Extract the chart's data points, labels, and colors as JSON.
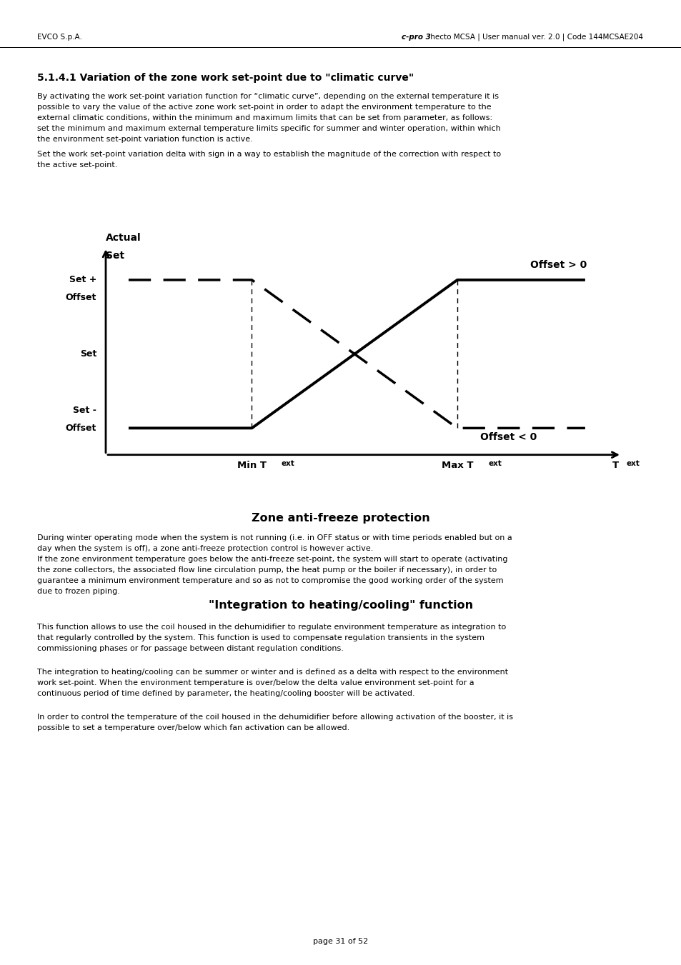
{
  "page_bg": "#ffffff",
  "header_left": "EVCO S.p.A.",
  "header_right_bold": "c-pro 3",
  "header_right_rest": " hecto MCSA | User manual ver. 2.0 | Code 144MCSAE204",
  "section_title": "5.1.4.1 Variation of the zone work set-point due to \"climatic curve\"",
  "para1_lines": [
    "By activating the work set-point variation function for “climatic curve”, depending on the external temperature it is",
    "possible to vary the value of the active zone work set-point in order to adapt the environment temperature to the",
    "external climatic conditions, within the minimum and maximum limits that can be set from parameter, as follows:"
  ],
  "para2_lines": [
    "set the minimum and maximum external temperature limits specific for summer and winter operation, within which",
    "the environment set-point variation function is active."
  ],
  "para3_lines": [
    "Set the work set-point variation delta with sign in a way to establish the magnitude of the correction with respect to",
    "the active set-point."
  ],
  "section2_title": "Zone anti-freeze protection",
  "s2p1_lines": [
    "During winter operating mode when the system is not running (i.e. in OFF status or with time periods enabled but on a",
    "day when the system is off), a zone anti-freeze protection control is however active."
  ],
  "s2p2_lines": [
    "If the zone environment temperature goes below the anti-freeze set-point, the system will start to operate (activating",
    "the zone collectors, the associated flow line circulation pump, the heat pump or the boiler if necessary), in order to",
    "guarantee a minimum environment temperature and so as not to compromise the good working order of the system",
    "due to frozen piping."
  ],
  "section3_title": "\"Integration to heating/cooling\" function",
  "s3p1_lines": [
    "This function allows to use the coil housed in the dehumidifier to regulate environment temperature as integration to",
    "that regularly controlled by the system. This function is used to compensate regulation transients in the system",
    "commissioning phases or for passage between distant regulation conditions."
  ],
  "s3p2_lines": [
    "The integration to heating/cooling can be summer or winter and is defined as a delta with respect to the environment",
    "work set-point. When the environment temperature is over/below the delta value environment set-point for a",
    "continuous period of time defined by parameter, the heating/cooling booster will be activated."
  ],
  "s3p3_lines": [
    "In order to control the temperature of the coil housed in the dehumidifier before allowing activation of the booster, it is",
    "possible to set a temperature over/below which fan activation can be allowed."
  ],
  "footer": "page 31 of 52",
  "chart_label_actual": "Actual",
  "chart_label_set_axis": "Set",
  "chart_label_set_plus": "Set +",
  "chart_label_offset_word": "Offset",
  "chart_label_set": "Set",
  "chart_label_set_minus": "Set -",
  "chart_label_offset_pos": "Offset > 0",
  "chart_label_offset_neg": "Offset < 0",
  "chart_label_min_t": "Min T",
  "chart_label_max_t": "Max T",
  "chart_label_t": "T",
  "chart_subscript": "ext"
}
